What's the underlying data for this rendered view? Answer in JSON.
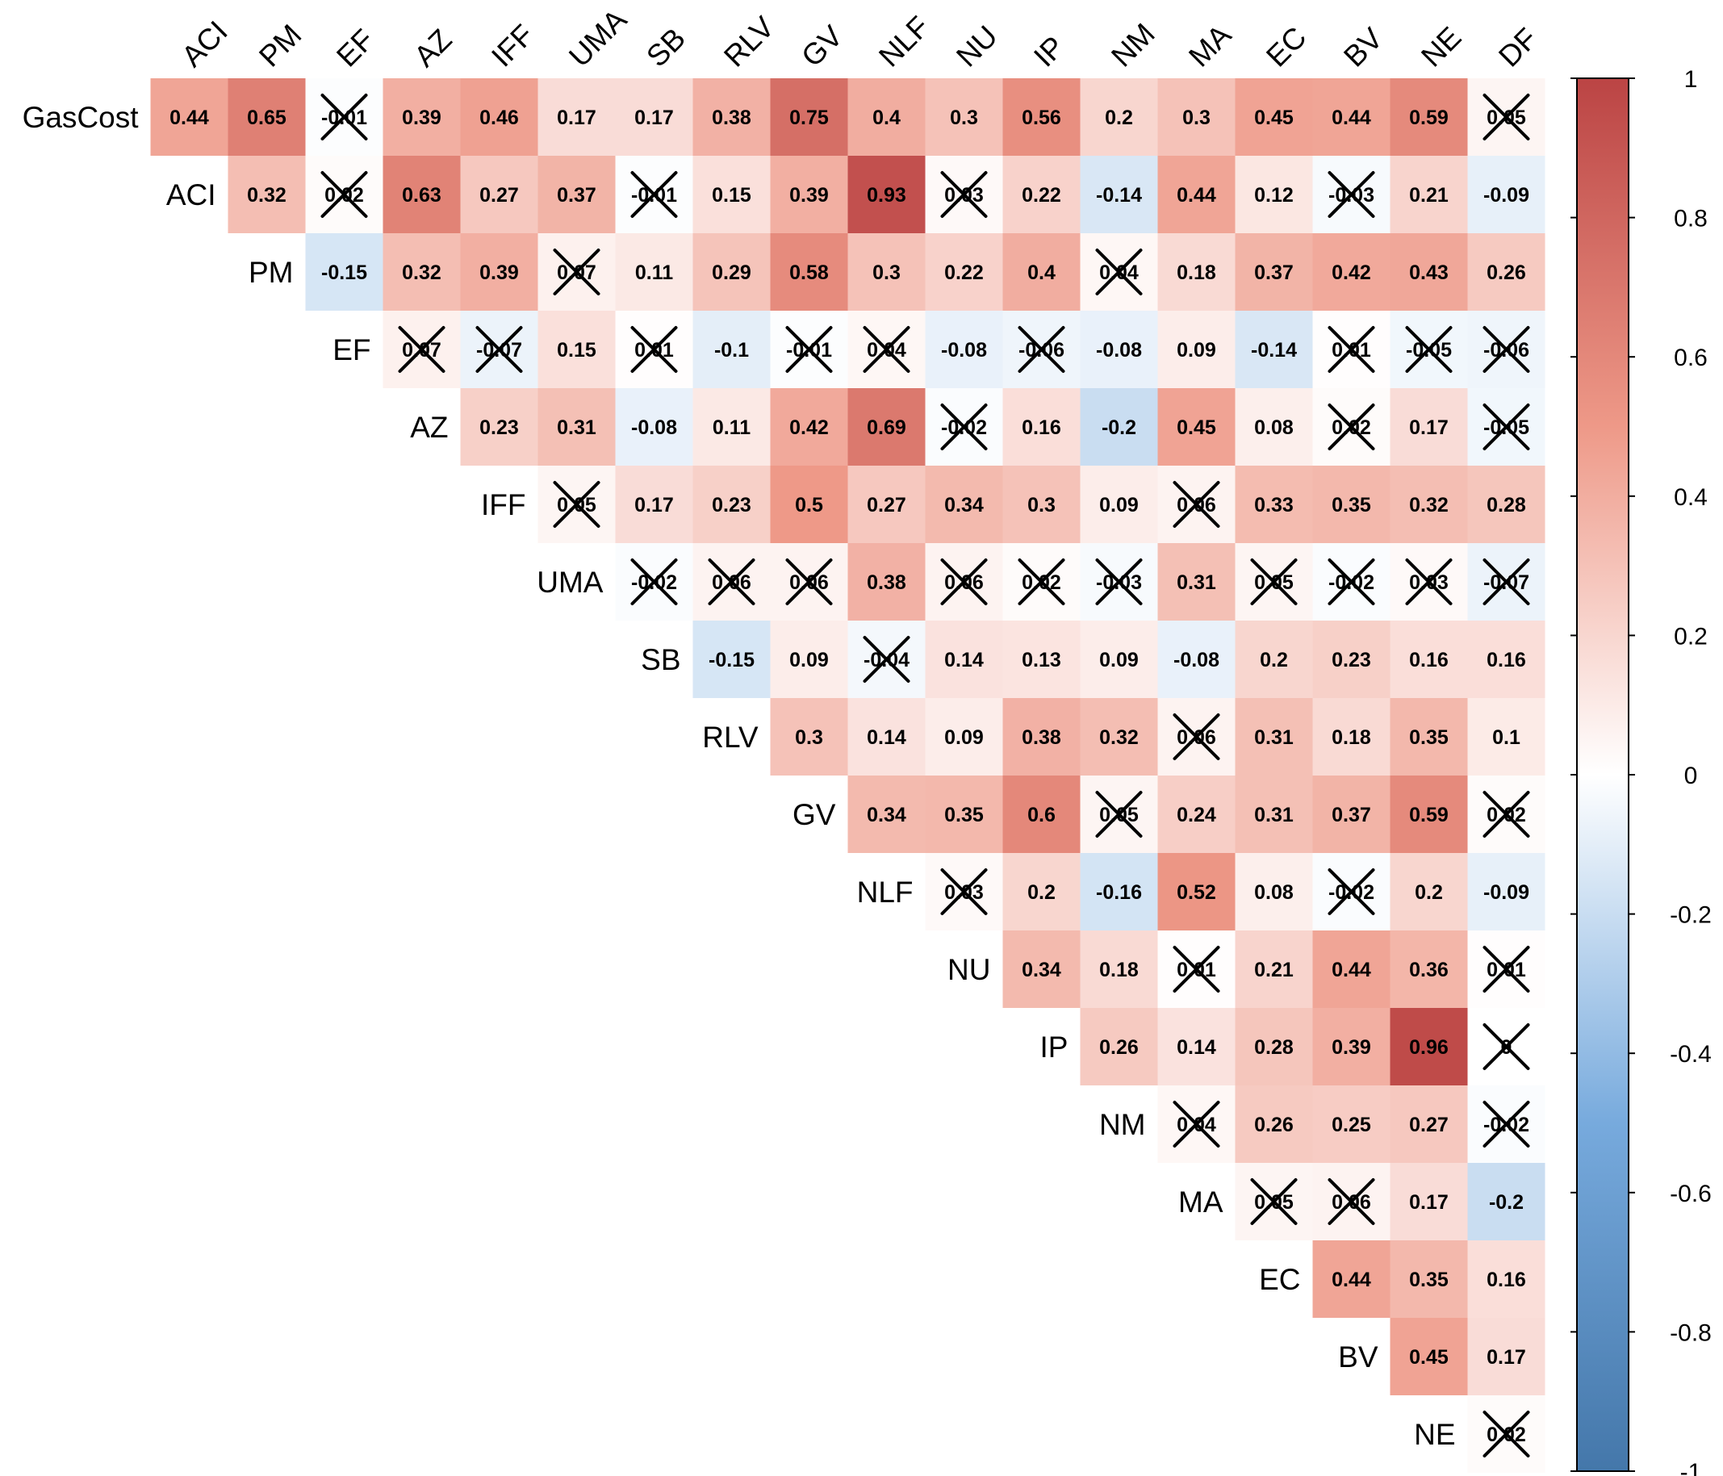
{
  "chart_data": {
    "type": "heatmap",
    "layout": "upper-triangle",
    "rows": [
      "GasCost",
      "ACI",
      "PM",
      "EF",
      "AZ",
      "IFF",
      "UMA",
      "SB",
      "RLV",
      "GV",
      "NLF",
      "NU",
      "IP",
      "NM",
      "MA",
      "EC",
      "BV",
      "NE"
    ],
    "columns": [
      "ACI",
      "PM",
      "EF",
      "AZ",
      "IFF",
      "UMA",
      "SB",
      "RLV",
      "GV",
      "NLF",
      "NU",
      "IP",
      "NM",
      "MA",
      "EC",
      "BV",
      "NE",
      "DF"
    ],
    "values": [
      [
        0.44,
        0.65,
        -0.01,
        0.39,
        0.46,
        0.17,
        0.17,
        0.38,
        0.75,
        0.4,
        0.3,
        0.56,
        0.2,
        0.3,
        0.45,
        0.44,
        0.59,
        0.05
      ],
      [
        0.32,
        0.02,
        0.63,
        0.27,
        0.37,
        -0.01,
        0.15,
        0.39,
        0.93,
        0.03,
        0.22,
        -0.14,
        0.44,
        0.12,
        -0.03,
        0.21,
        -0.09
      ],
      [
        -0.15,
        0.32,
        0.39,
        0.07,
        0.11,
        0.29,
        0.58,
        0.3,
        0.22,
        0.4,
        0.04,
        0.18,
        0.37,
        0.42,
        0.43,
        0.26
      ],
      [
        0.07,
        -0.07,
        0.15,
        0.01,
        -0.1,
        -0.01,
        0.04,
        -0.08,
        -0.06,
        -0.08,
        0.09,
        -0.14,
        0.01,
        -0.05,
        -0.06
      ],
      [
        0.23,
        0.31,
        -0.08,
        0.11,
        0.42,
        0.69,
        -0.02,
        0.16,
        -0.2,
        0.45,
        0.08,
        0.02,
        0.17,
        -0.05
      ],
      [
        0.05,
        0.17,
        0.23,
        0.5,
        0.27,
        0.34,
        0.3,
        0.09,
        0.06,
        0.33,
        0.35,
        0.32,
        0.28
      ],
      [
        -0.02,
        0.06,
        0.06,
        0.38,
        0.06,
        0.02,
        -0.03,
        0.31,
        0.05,
        -0.02,
        0.03,
        -0.07
      ],
      [
        -0.15,
        0.09,
        -0.04,
        0.14,
        0.13,
        0.09,
        -0.08,
        0.2,
        0.23,
        0.16,
        0.16
      ],
      [
        0.3,
        0.14,
        0.09,
        0.38,
        0.32,
        0.06,
        0.31,
        0.18,
        0.35,
        0.1
      ],
      [
        0.34,
        0.35,
        0.6,
        0.05,
        0.24,
        0.31,
        0.37,
        0.59,
        0.02
      ],
      [
        0.03,
        0.2,
        -0.16,
        0.52,
        0.08,
        -0.02,
        0.2,
        -0.09
      ],
      [
        0.34,
        0.18,
        0.01,
        0.21,
        0.44,
        0.36,
        0.01
      ],
      [
        0.26,
        0.14,
        0.28,
        0.39,
        0.96,
        0
      ],
      [
        0.04,
        0.26,
        0.25,
        0.27,
        -0.02
      ],
      [
        0.05,
        0.06,
        0.17,
        -0.2
      ],
      [
        0.44,
        0.35,
        0.16
      ],
      [
        0.45,
        0.17
      ],
      [
        0.02
      ]
    ],
    "value_labels": [
      [
        "0.44",
        "0.65",
        "-0.01",
        "0.39",
        "0.46",
        "0.17",
        "0.17",
        "0.38",
        "0.75",
        "0.4",
        "0.3",
        "0.56",
        "0.2",
        "0.3",
        "0.45",
        "0.44",
        "0.59",
        "0.05"
      ],
      [
        "0.32",
        "0.02",
        "0.63",
        "0.27",
        "0.37",
        "-0.01",
        "0.15",
        "0.39",
        "0.93",
        "0.03",
        "0.22",
        "-0.14",
        "0.44",
        "0.12",
        "-0.03",
        "0.21",
        "-0.09"
      ],
      [
        "-0.15",
        "0.32",
        "0.39",
        "0.07",
        "0.11",
        "0.29",
        "0.58",
        "0.3",
        "0.22",
        "0.4",
        "0.04",
        "0.18",
        "0.37",
        "0.42",
        "0.43",
        "0.26"
      ],
      [
        "0.07",
        "-0.07",
        "0.15",
        "0.01",
        "-0.1",
        "-0.01",
        "0.04",
        "-0.08",
        "-0.06",
        "-0.08",
        "0.09",
        "-0.14",
        "0.01",
        "-0.05",
        "-0.06"
      ],
      [
        "0.23",
        "0.31",
        "-0.08",
        "0.11",
        "0.42",
        "0.69",
        "-0.02",
        "0.16",
        "-0.2",
        "0.45",
        "0.08",
        "0.02",
        "0.17",
        "-0.05"
      ],
      [
        "0.05",
        "0.17",
        "0.23",
        "0.5",
        "0.27",
        "0.34",
        "0.3",
        "0.09",
        "0.06",
        "0.33",
        "0.35",
        "0.32",
        "0.28"
      ],
      [
        "-0.02",
        "0.06",
        "0.06",
        "0.38",
        "0.06",
        "0.02",
        "-0.03",
        "0.31",
        "0.05",
        "-0.02",
        "0.03",
        "-0.07"
      ],
      [
        "-0.15",
        "0.09",
        "-0.04",
        "0.14",
        "0.13",
        "0.09",
        "-0.08",
        "0.2",
        "0.23",
        "0.16",
        "0.16"
      ],
      [
        "0.3",
        "0.14",
        "0.09",
        "0.38",
        "0.32",
        "0.06",
        "0.31",
        "0.18",
        "0.35",
        "0.1"
      ],
      [
        "0.34",
        "0.35",
        "0.6",
        "0.05",
        "0.24",
        "0.31",
        "0.37",
        "0.59",
        "0.02"
      ],
      [
        "0.03",
        "0.2",
        "-0.16",
        "0.52",
        "0.08",
        "-0.02",
        "0.2",
        "-0.09"
      ],
      [
        "0.34",
        "0.18",
        "0.01",
        "0.21",
        "0.44",
        "0.36",
        "0.01"
      ],
      [
        "0.26",
        "0.14",
        "0.28",
        "0.39",
        "0.96",
        "0"
      ],
      [
        "0.04",
        "0.26",
        "0.25",
        "0.27",
        "-0.02"
      ],
      [
        "0.05",
        "0.06",
        "0.17",
        "-0.2"
      ],
      [
        "0.44",
        "0.35",
        "0.16"
      ],
      [
        "0.45",
        "0.17"
      ],
      [
        "0.02"
      ]
    ],
    "crossed": [
      [
        false,
        false,
        true,
        false,
        false,
        false,
        false,
        false,
        false,
        false,
        false,
        false,
        false,
        false,
        false,
        false,
        false,
        true
      ],
      [
        false,
        true,
        false,
        false,
        false,
        true,
        false,
        false,
        false,
        true,
        false,
        false,
        false,
        false,
        true,
        false,
        false
      ],
      [
        false,
        false,
        false,
        true,
        false,
        false,
        false,
        false,
        false,
        false,
        true,
        false,
        false,
        false,
        false,
        false
      ],
      [
        true,
        true,
        false,
        true,
        false,
        true,
        true,
        false,
        true,
        false,
        false,
        false,
        true,
        true,
        true
      ],
      [
        false,
        false,
        false,
        false,
        false,
        false,
        true,
        false,
        false,
        false,
        false,
        true,
        false,
        true
      ],
      [
        true,
        false,
        false,
        false,
        false,
        false,
        false,
        false,
        true,
        false,
        false,
        false,
        false
      ],
      [
        true,
        true,
        true,
        false,
        true,
        true,
        true,
        false,
        true,
        true,
        true,
        true
      ],
      [
        false,
        false,
        true,
        false,
        false,
        false,
        false,
        false,
        false,
        false,
        false
      ],
      [
        false,
        false,
        false,
        false,
        false,
        true,
        false,
        false,
        false,
        false
      ],
      [
        false,
        false,
        false,
        true,
        false,
        false,
        false,
        false,
        true
      ],
      [
        true,
        false,
        false,
        false,
        false,
        true,
        false,
        false
      ],
      [
        false,
        false,
        true,
        false,
        false,
        false,
        true
      ],
      [
        false,
        false,
        false,
        false,
        false,
        true
      ],
      [
        true,
        false,
        false,
        false,
        true
      ],
      [
        true,
        true,
        false,
        false
      ],
      [
        false,
        false,
        false
      ],
      [
        false,
        false
      ],
      [
        true
      ]
    ],
    "colorbar": {
      "range": [
        -1,
        1
      ],
      "ticks": [
        "1",
        "0.8",
        "0.6",
        "0.4",
        "0.2",
        "0",
        "-0.2",
        "-0.4",
        "-0.6",
        "-0.8",
        "-1"
      ],
      "colors": {
        "negative": "#4477AA",
        "zero": "#FFFFFF",
        "positive": "#BB4444"
      }
    }
  }
}
